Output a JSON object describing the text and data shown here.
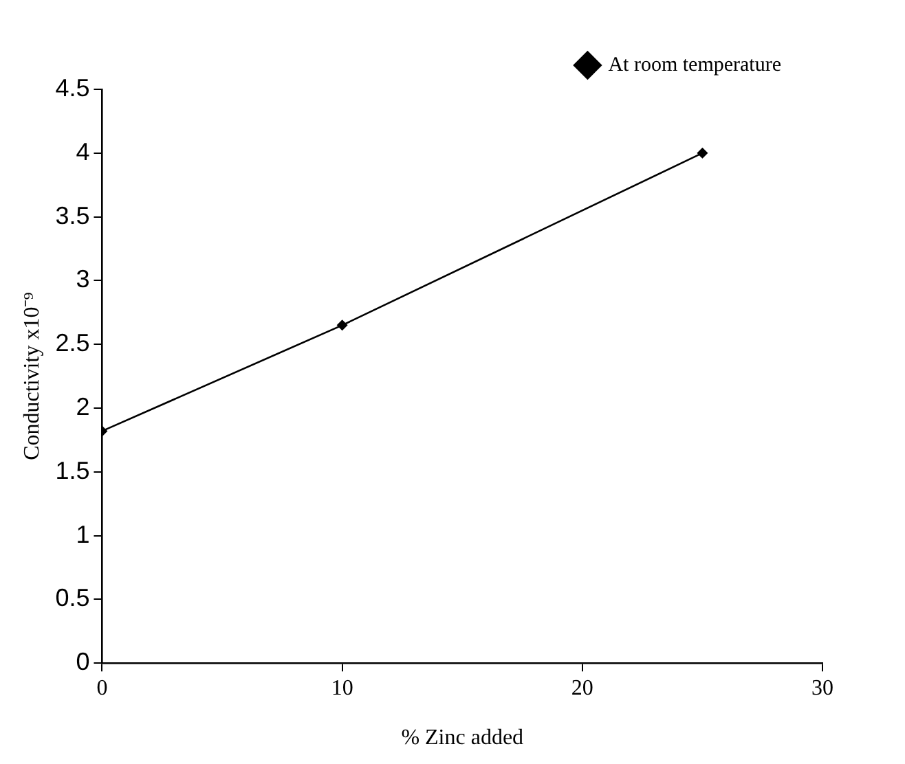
{
  "chart_data": {
    "type": "line",
    "xlabel": "% Zinc added",
    "ylabel": "Conductivity x10⁻⁹",
    "x": [
      0,
      10,
      25
    ],
    "series": [
      {
        "name": "At room temperature",
        "color": "#000000",
        "values": [
          1.82,
          2.65,
          4.0
        ]
      }
    ],
    "xlim": [
      0,
      30
    ],
    "xticks": [
      0,
      10,
      20,
      30
    ],
    "ylim": [
      0,
      4.5
    ],
    "yticks": [
      0,
      0.5,
      1,
      1.5,
      2,
      2.5,
      3,
      3.5,
      4,
      4.5
    ],
    "grid": false,
    "legend": "top right",
    "marker": "diamond",
    "line_style": "solid"
  }
}
